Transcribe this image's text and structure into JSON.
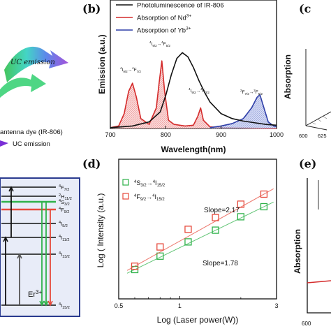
{
  "colors": {
    "pl": "#111111",
    "nd": "#d42b2b",
    "yb": "#2f3fa8",
    "green": "#2fb24a",
    "red": "#e64a3c",
    "grid": "#333333",
    "band_fill": "#f6b8b8",
    "yb_fill": "#b8c2ee"
  },
  "left_panel": {
    "uc_emission": "UC emission",
    "antenna_label": "antenna dye (IR-806)",
    "uc_legend": "UC emission",
    "er_label": "Er",
    "er_sup": "3+",
    "levels": [
      {
        "pre": "4",
        "main": "F",
        "sub": "7/2"
      },
      {
        "pre": "2",
        "main": "H",
        "sub": "11/2"
      },
      {
        "pre": "4",
        "main": "S",
        "sub": "3/2"
      },
      {
        "pre": "4",
        "main": "F",
        "sub": "9/2"
      },
      {
        "pre": "4",
        "main": "I",
        "sub": "9/2"
      },
      {
        "pre": "4",
        "main": "I",
        "sub": "11/2"
      },
      {
        "pre": "4",
        "main": "I",
        "sub": "13/2"
      },
      {
        "pre": "4",
        "main": "I",
        "sub": "15/2"
      }
    ]
  },
  "panel_b": {
    "letter": "(b)",
    "ylabel": "Emission (a.u.)",
    "xlabel": "Wavelength(nm)",
    "legend": [
      {
        "label": "Photoluminescence of IR-806",
        "color": "#111111"
      },
      {
        "label": "Absorption of Nd",
        "sup": "3+",
        "color": "#d42b2b"
      },
      {
        "label": "Absorption of Yb",
        "sup": "3+",
        "color": "#2f3fa8"
      }
    ],
    "annotations": [
      {
        "pre": "4",
        "a": "I",
        "asub": "9/2",
        "arrow": "→",
        "bpre": "4",
        "b": "F",
        "bsub": "7/2"
      },
      {
        "pre": "4",
        "a": "I",
        "asub": "9/2",
        "arrow": "→",
        "bpre": "4",
        "b": "F",
        "bsub": "5/2"
      },
      {
        "pre": "4",
        "a": "I",
        "asub": "9/2",
        "arrow": "→",
        "bpre": "4",
        "b": "F",
        "bsub": "3/2"
      },
      {
        "pre": "2",
        "a": "F",
        "asub": "7/2",
        "arrow": "→",
        "bpre": "2",
        "b": "F",
        "bsub": "5/2"
      }
    ]
  },
  "panel_c": {
    "letter": "(c",
    "ylabel": "Absorption",
    "ticks": [
      "600",
      "625"
    ]
  },
  "panel_d": {
    "letter": "(d)",
    "ylabel": "Log ( Intensity  (a.u.)",
    "xlabel": "Log  (Laser power(W))",
    "xticks": [
      "0.5",
      "1",
      "3"
    ],
    "legend": [
      {
        "pre": "4",
        "main": "S",
        "sub": "3/2",
        "arrow": "→",
        "pre2": "4",
        "main2": "I",
        "sub2": "15/2",
        "color": "#2fb24a"
      },
      {
        "pre": "4",
        "main": "F",
        "sub": "9/2",
        "arrow": "→",
        "pre2": "4",
        "main2": "I",
        "sub2": "15/2",
        "color": "#e64a3c"
      }
    ],
    "slope_red": "Slope=2.17",
    "slope_green": "Slope=1.78"
  },
  "panel_e": {
    "letter": "(e)",
    "ylabel": "Absorption",
    "ticks": [
      "600"
    ]
  },
  "chart_data": [
    {
      "type": "line",
      "panel": "b",
      "xlabel": "Wavelength(nm)",
      "ylabel": "Emission (a.u.)",
      "xlim": [
        700,
        1000
      ],
      "xticks": [
        700,
        800,
        900,
        1000
      ],
      "series": [
        {
          "name": "Photoluminescence of IR-806",
          "x": [
            700,
            740,
            770,
            790,
            800,
            810,
            820,
            830,
            840,
            850,
            860,
            870,
            880,
            900,
            920,
            940,
            960,
            980,
            1000
          ],
          "y": [
            0.01,
            0.03,
            0.08,
            0.2,
            0.4,
            0.65,
            0.85,
            0.92,
            0.87,
            0.74,
            0.58,
            0.44,
            0.32,
            0.18,
            0.12,
            0.09,
            0.07,
            0.05,
            0.04
          ]
        },
        {
          "name": "Absorption of Nd3+",
          "x": [
            700,
            715,
            725,
            733,
            740,
            747,
            755,
            770,
            783,
            788,
            793,
            798,
            805,
            815,
            835,
            850,
            858,
            863,
            868,
            880,
            900,
            1000
          ],
          "y": [
            0.01,
            0.03,
            0.18,
            0.45,
            0.55,
            0.38,
            0.12,
            0.05,
            0.25,
            0.55,
            0.82,
            0.45,
            0.1,
            0.05,
            0.03,
            0.04,
            0.15,
            0.25,
            0.1,
            0.02,
            0.01,
            0.0
          ]
        },
        {
          "name": "Absorption of Yb3+",
          "x": [
            880,
            900,
            920,
            940,
            955,
            965,
            970,
            975,
            985,
            995,
            1000
          ],
          "y": [
            0.01,
            0.03,
            0.06,
            0.12,
            0.25,
            0.38,
            0.41,
            0.3,
            0.08,
            0.03,
            0.02
          ]
        }
      ]
    },
    {
      "type": "scatter",
      "panel": "d",
      "xlabel": "Log  (Laser power(W))",
      "ylabel": "Log ( Intensity  (a.u.)",
      "xscale": "log",
      "xlim": [
        0.5,
        3
      ],
      "series": [
        {
          "name": "4S3/2→4I15/2",
          "slope": 1.78,
          "x": [
            0.6,
            0.8,
            1.1,
            1.5,
            2.0,
            2.6
          ],
          "y": [
            0.1,
            0.26,
            0.43,
            0.57,
            0.73,
            0.85
          ]
        },
        {
          "name": "4F9/2→4I15/2",
          "slope": 2.17,
          "x": [
            0.6,
            0.8,
            1.1,
            1.5,
            2.0,
            2.6
          ],
          "y": [
            0.14,
            0.37,
            0.58,
            0.72,
            0.88,
            1.0
          ]
        }
      ]
    }
  ]
}
